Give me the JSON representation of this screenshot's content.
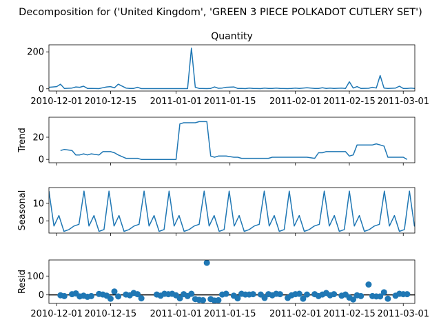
{
  "chart_data": {
    "type": "line",
    "title": "Decomposition for ('United Kingdom', 'GREEN 3 PIECE POLKADOT CUTLERY SET')",
    "series_color": "#1f77b4",
    "x_range": [
      "2010-11-29",
      "2011-03-04"
    ],
    "x_tick_labels": [
      "2010-12-01",
      "2010-12-15",
      "2011-01-01",
      "2011-01-15",
      "2011-02-01",
      "2011-02-15",
      "2011-03-01"
    ],
    "panels": [
      {
        "key": "observed",
        "title": "Quantity",
        "ylabel": "",
        "ylim": [
          -12,
          238
        ],
        "yticks": [
          0,
          200
        ],
        "style": "line",
        "x": [
          "2010-11-29",
          "2010-12-01",
          "2010-12-02",
          "2010-12-03",
          "2010-12-05",
          "2010-12-06",
          "2010-12-07",
          "2010-12-08",
          "2010-12-09",
          "2010-12-10",
          "2010-12-12",
          "2010-12-13",
          "2010-12-14",
          "2010-12-15",
          "2010-12-16",
          "2010-12-17",
          "2010-12-19",
          "2010-12-20",
          "2010-12-21",
          "2010-12-22",
          "2010-12-23",
          "2010-12-27",
          "2010-12-30",
          "2011-01-03",
          "2011-01-04",
          "2011-01-05",
          "2011-01-06",
          "2011-01-07",
          "2011-01-09",
          "2011-01-10",
          "2011-01-11",
          "2011-01-12",
          "2011-01-13",
          "2011-01-14",
          "2011-01-16",
          "2011-01-17",
          "2011-01-18",
          "2011-01-19",
          "2011-01-20",
          "2011-01-21",
          "2011-01-23",
          "2011-01-24",
          "2011-01-25",
          "2011-01-26",
          "2011-01-27",
          "2011-01-28",
          "2011-01-30",
          "2011-01-31",
          "2011-02-01",
          "2011-02-02",
          "2011-02-03",
          "2011-02-04",
          "2011-02-06",
          "2011-02-07",
          "2011-02-08",
          "2011-02-09",
          "2011-02-10",
          "2011-02-11",
          "2011-02-13",
          "2011-02-14",
          "2011-02-15",
          "2011-02-16",
          "2011-02-17",
          "2011-02-18",
          "2011-02-20",
          "2011-02-21",
          "2011-02-22",
          "2011-02-23",
          "2011-02-24",
          "2011-02-25",
          "2011-02-27",
          "2011-02-28",
          "2011-03-01",
          "2011-03-02",
          "2011-03-03",
          "2011-03-04"
        ],
        "y": [
          8,
          12,
          25,
          2,
          4,
          10,
          8,
          14,
          2,
          2,
          1,
          6,
          10,
          12,
          5,
          25,
          4,
          2,
          2,
          8,
          1,
          1,
          1,
          1,
          1,
          220,
          8,
          2,
          1,
          2,
          10,
          3,
          4,
          8,
          10,
          2,
          2,
          1,
          4,
          2,
          1,
          4,
          2,
          2,
          4,
          2,
          1,
          2,
          4,
          2,
          4,
          6,
          2,
          2,
          6,
          2,
          4,
          2,
          4,
          2,
          38,
          4,
          12,
          2,
          3,
          8,
          4,
          72,
          4,
          2,
          4,
          14,
          2,
          2,
          4,
          2
        ]
      },
      {
        "key": "trend",
        "title": "",
        "ylabel": "Trend",
        "ylim": [
          -3,
          38
        ],
        "yticks": [
          0,
          20
        ],
        "style": "line",
        "x": [
          "2010-12-02",
          "2010-12-03",
          "2010-12-05",
          "2010-12-06",
          "2010-12-07",
          "2010-12-08",
          "2010-12-09",
          "2010-12-10",
          "2010-12-12",
          "2010-12-13",
          "2010-12-14",
          "2010-12-15",
          "2010-12-16",
          "2010-12-17",
          "2010-12-19",
          "2010-12-20",
          "2010-12-21",
          "2010-12-22",
          "2010-12-23",
          "2010-12-27",
          "2010-12-30",
          "2011-01-01",
          "2011-01-02",
          "2011-01-03",
          "2011-01-04",
          "2011-01-05",
          "2011-01-06",
          "2011-01-07",
          "2011-01-09",
          "2011-01-10",
          "2011-01-11",
          "2011-01-12",
          "2011-01-13",
          "2011-01-14",
          "2011-01-16",
          "2011-01-17",
          "2011-01-18",
          "2011-01-19",
          "2011-01-20",
          "2011-01-21",
          "2011-01-23",
          "2011-01-24",
          "2011-01-25",
          "2011-01-26",
          "2011-01-27",
          "2011-01-28",
          "2011-01-30",
          "2011-01-31",
          "2011-02-01",
          "2011-02-02",
          "2011-02-03",
          "2011-02-04",
          "2011-02-06",
          "2011-02-07",
          "2011-02-08",
          "2011-02-09",
          "2011-02-10",
          "2011-02-11",
          "2011-02-13",
          "2011-02-14",
          "2011-02-15",
          "2011-02-16",
          "2011-02-17",
          "2011-02-18",
          "2011-02-20",
          "2011-02-21",
          "2011-02-22",
          "2011-02-23",
          "2011-02-24",
          "2011-02-25",
          "2011-02-27",
          "2011-02-28",
          "2011-03-01",
          "2011-03-02"
        ],
        "y": [
          8,
          9,
          8,
          4,
          4,
          5,
          4,
          5,
          4,
          7,
          7,
          7,
          6,
          4,
          1,
          1,
          1,
          1,
          0,
          0,
          0,
          0,
          32,
          33,
          33,
          33,
          33,
          34,
          34,
          3,
          2,
          3,
          3,
          3,
          2,
          2,
          1,
          1,
          1,
          1,
          1,
          1,
          1,
          2,
          2,
          2,
          2,
          2,
          2,
          2,
          2,
          2,
          1,
          6,
          6,
          7,
          7,
          7,
          7,
          7,
          3,
          4,
          13,
          13,
          13,
          13,
          14,
          13,
          12,
          2,
          2,
          2,
          2,
          0
        ]
      },
      {
        "key": "seasonal",
        "title": "",
        "ylabel": "Seasonal",
        "ylim": [
          -7,
          19
        ],
        "yticks": [
          0,
          10
        ],
        "style": "line",
        "period": 12,
        "pattern": [
          17,
          -3,
          3,
          -6,
          -5,
          -3,
          -2,
          17,
          -3,
          3,
          -6,
          -5
        ],
        "x_start": "2010-11-29",
        "x_step_days": 1.3,
        "n": 75
      },
      {
        "key": "resid",
        "title": "",
        "ylabel": "Resid",
        "ylim": [
          -45,
          185
        ],
        "yticks": [
          0,
          100
        ],
        "style": "scatter",
        "zero_line": true,
        "x": [
          "2010-12-02",
          "2010-12-03",
          "2010-12-05",
          "2010-12-06",
          "2010-12-07",
          "2010-12-08",
          "2010-12-09",
          "2010-12-10",
          "2010-12-12",
          "2010-12-13",
          "2010-12-14",
          "2010-12-15",
          "2010-12-16",
          "2010-12-17",
          "2010-12-19",
          "2010-12-20",
          "2010-12-21",
          "2010-12-22",
          "2010-12-23",
          "2010-12-27",
          "2010-12-28",
          "2010-12-29",
          "2010-12-30",
          "2010-12-31",
          "2011-01-01",
          "2011-01-02",
          "2011-01-03",
          "2011-01-04",
          "2011-01-05",
          "2011-01-06",
          "2011-01-07",
          "2011-01-08",
          "2011-01-09",
          "2011-01-10",
          "2011-01-11",
          "2011-01-12",
          "2011-01-13",
          "2011-01-14",
          "2011-01-16",
          "2011-01-17",
          "2011-01-18",
          "2011-01-19",
          "2011-01-20",
          "2011-01-21",
          "2011-01-23",
          "2011-01-24",
          "2011-01-25",
          "2011-01-26",
          "2011-01-27",
          "2011-01-28",
          "2011-01-30",
          "2011-01-31",
          "2011-02-01",
          "2011-02-02",
          "2011-02-03",
          "2011-02-04",
          "2011-02-06",
          "2011-02-07",
          "2011-02-08",
          "2011-02-09",
          "2011-02-10",
          "2011-02-11",
          "2011-02-13",
          "2011-02-14",
          "2011-02-15",
          "2011-02-16",
          "2011-02-17",
          "2011-02-18",
          "2011-02-20",
          "2011-02-21",
          "2011-02-22",
          "2011-02-23",
          "2011-02-24",
          "2011-02-25",
          "2011-02-27",
          "2011-02-28",
          "2011-03-01",
          "2011-03-02"
        ],
        "y": [
          -2,
          -6,
          4,
          8,
          -8,
          -4,
          -10,
          -6,
          5,
          2,
          -4,
          -20,
          18,
          -8,
          2,
          -2,
          10,
          4,
          -18,
          2,
          -4,
          6,
          4,
          6,
          -2,
          -18,
          4,
          -6,
          6,
          -22,
          -26,
          -28,
          170,
          -22,
          -30,
          -28,
          2,
          6,
          -4,
          -18,
          6,
          2,
          2,
          4,
          2,
          -16,
          4,
          -2,
          6,
          4,
          -16,
          -2,
          4,
          6,
          -20,
          2,
          4,
          -6,
          2,
          10,
          -2,
          4,
          -4,
          2,
          -14,
          -24,
          -2,
          -6,
          55,
          -6,
          -8,
          -8,
          14,
          -20,
          -4,
          6,
          4,
          4
        ]
      }
    ]
  }
}
